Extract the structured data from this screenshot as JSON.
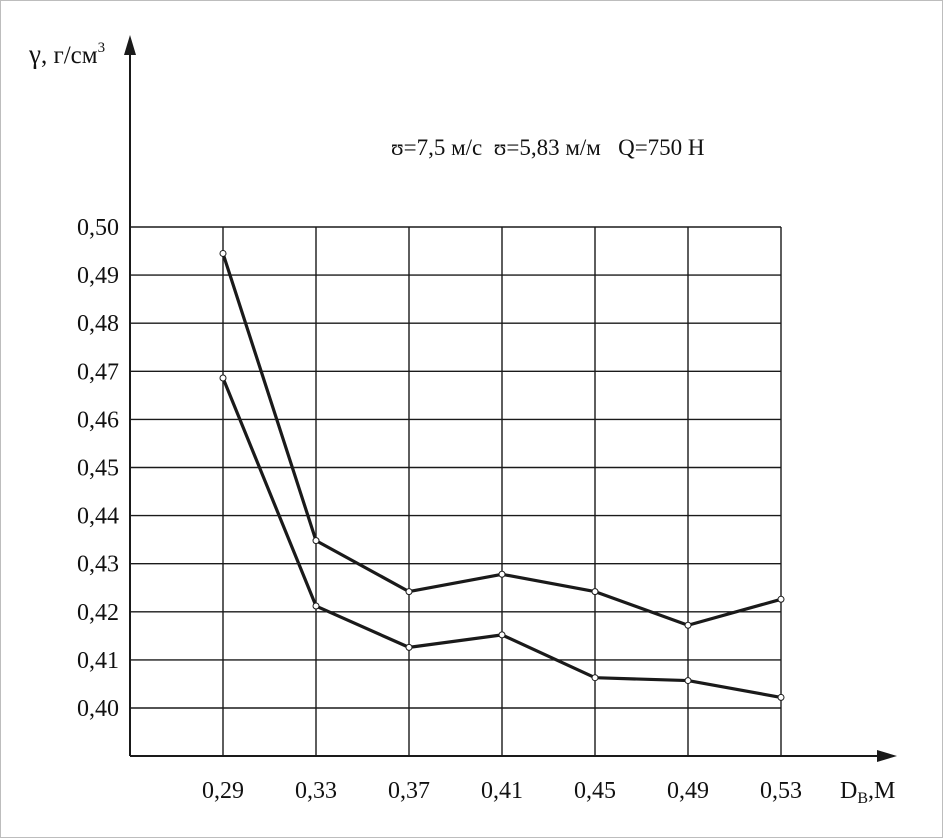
{
  "chart_data": {
    "type": "line",
    "x_label_main": "D",
    "x_label_sub": "В",
    "x_label_unit": ",М",
    "y_label_symbol": "γ",
    "y_label_unit": ", г/см",
    "y_label_exp": "3",
    "annotation": "ʊ=7,5 м/с  ʊ=5,83 м/м   Q=750 Н",
    "x_ticks": [
      "0,29",
      "0,33",
      "0,37",
      "0,41",
      "0,45",
      "0,49",
      "0,53"
    ],
    "y_ticks": [
      "0,40",
      "0,41",
      "0,42",
      "0,43",
      "0,44",
      "0,45",
      "0,46",
      "0,47",
      "0,48",
      "0,49",
      "0,50"
    ],
    "x": [
      0.29,
      0.33,
      0.37,
      0.41,
      0.45,
      0.49,
      0.53
    ],
    "ylim": [
      0.4,
      0.5
    ],
    "grid": true,
    "series": [
      {
        "values": [
          0.4945,
          0.4348,
          0.4242,
          0.4278,
          0.4242,
          0.4172,
          0.4226
        ]
      },
      {
        "values": [
          0.4686,
          0.4212,
          0.4126,
          0.4152,
          0.4063,
          0.4057,
          0.4022
        ]
      }
    ],
    "colors": {
      "line": "#1a1a1a",
      "grid": "#1a1a1a",
      "marker_fill": "#ffffff"
    }
  }
}
